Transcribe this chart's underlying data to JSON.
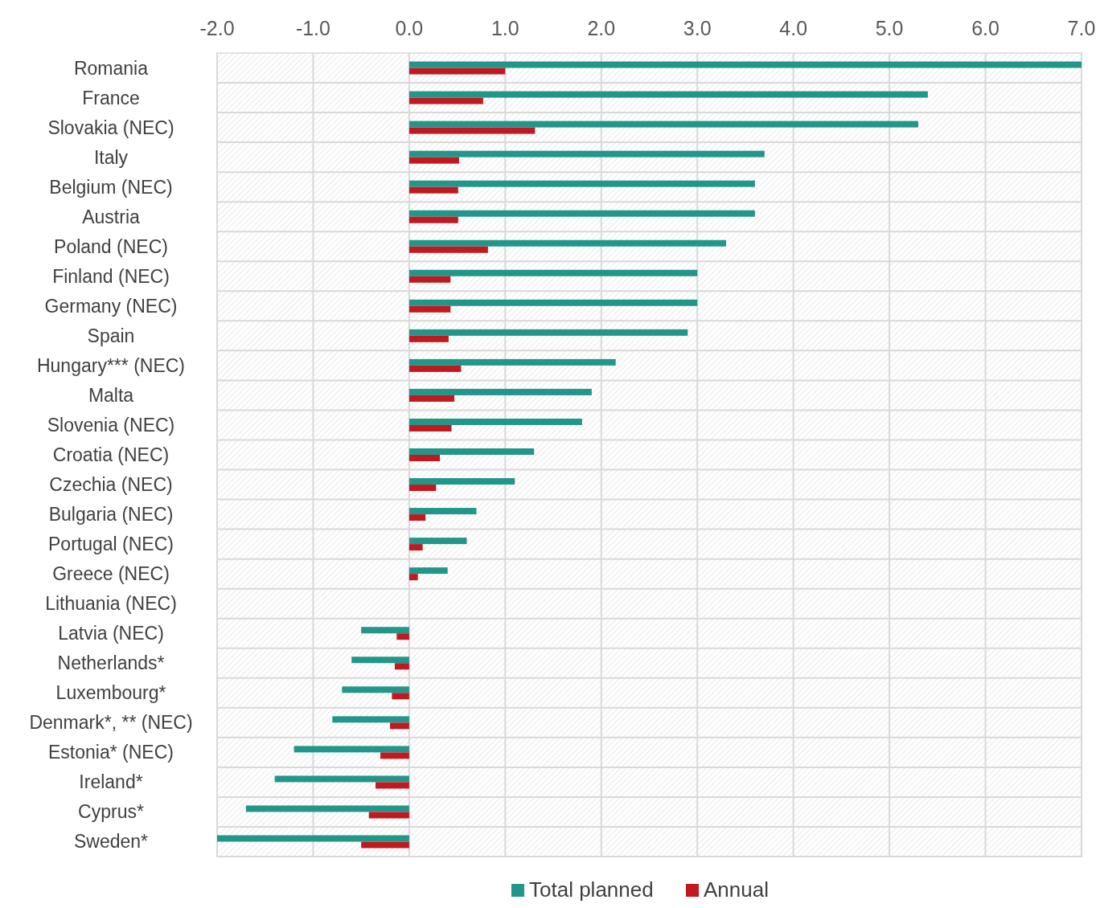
{
  "chart_data": {
    "type": "bar",
    "orientation": "horizontal",
    "categories": [
      "Romania",
      "France",
      "Slovakia (NEC)",
      "Italy",
      "Belgium (NEC)",
      "Austria",
      "Poland (NEC)",
      "Finland (NEC)",
      "Germany (NEC)",
      "Spain",
      "Hungary*** (NEC)",
      "Malta",
      "Slovenia (NEC)",
      "Croatia (NEC)",
      "Czechia (NEC)",
      "Bulgaria (NEC)",
      "Portugal (NEC)",
      "Greece (NEC)",
      "Lithuania (NEC)",
      "Latvia (NEC)",
      "Netherlands*",
      "Luxembourg*",
      "Denmark*, ** (NEC)",
      "Estonia* (NEC)",
      "Ireland*",
      "Cyprus*",
      "Sweden*"
    ],
    "series": [
      {
        "name": "Total planned",
        "color": "#23968a",
        "values": [
          7.0,
          5.4,
          5.3,
          3.7,
          3.6,
          3.6,
          3.3,
          3.0,
          3.0,
          2.9,
          2.15,
          1.9,
          1.8,
          1.3,
          1.1,
          0.7,
          0.6,
          0.4,
          0,
          -0.5,
          -0.6,
          -0.7,
          -0.8,
          -1.2,
          -1.4,
          -1.7,
          -2.0
        ]
      },
      {
        "name": "Annual",
        "color": "#c0191f",
        "values": [
          1.0,
          0.77,
          1.31,
          0.52,
          0.51,
          0.51,
          0.82,
          0.43,
          0.43,
          0.41,
          0.54,
          0.47,
          0.44,
          0.32,
          0.28,
          0.17,
          0.14,
          0.09,
          0,
          -0.13,
          -0.15,
          -0.18,
          -0.2,
          -0.3,
          -0.35,
          -0.42,
          -0.5
        ]
      }
    ],
    "xlim": [
      -2,
      7
    ],
    "xticks": [
      {
        "value": -2,
        "label": "-2.0"
      },
      {
        "value": -1,
        "label": "-1.0"
      },
      {
        "value": 0,
        "label": "0.0"
      },
      {
        "value": 1,
        "label": "1.0"
      },
      {
        "value": 2,
        "label": "2.0"
      },
      {
        "value": 3,
        "label": "3.0"
      },
      {
        "value": 4,
        "label": "4.0"
      },
      {
        "value": 5,
        "label": "5.0"
      },
      {
        "value": 6,
        "label": "6.0"
      },
      {
        "value": 7,
        "label": "7.0"
      }
    ],
    "grid": true,
    "legend": "bottom"
  }
}
